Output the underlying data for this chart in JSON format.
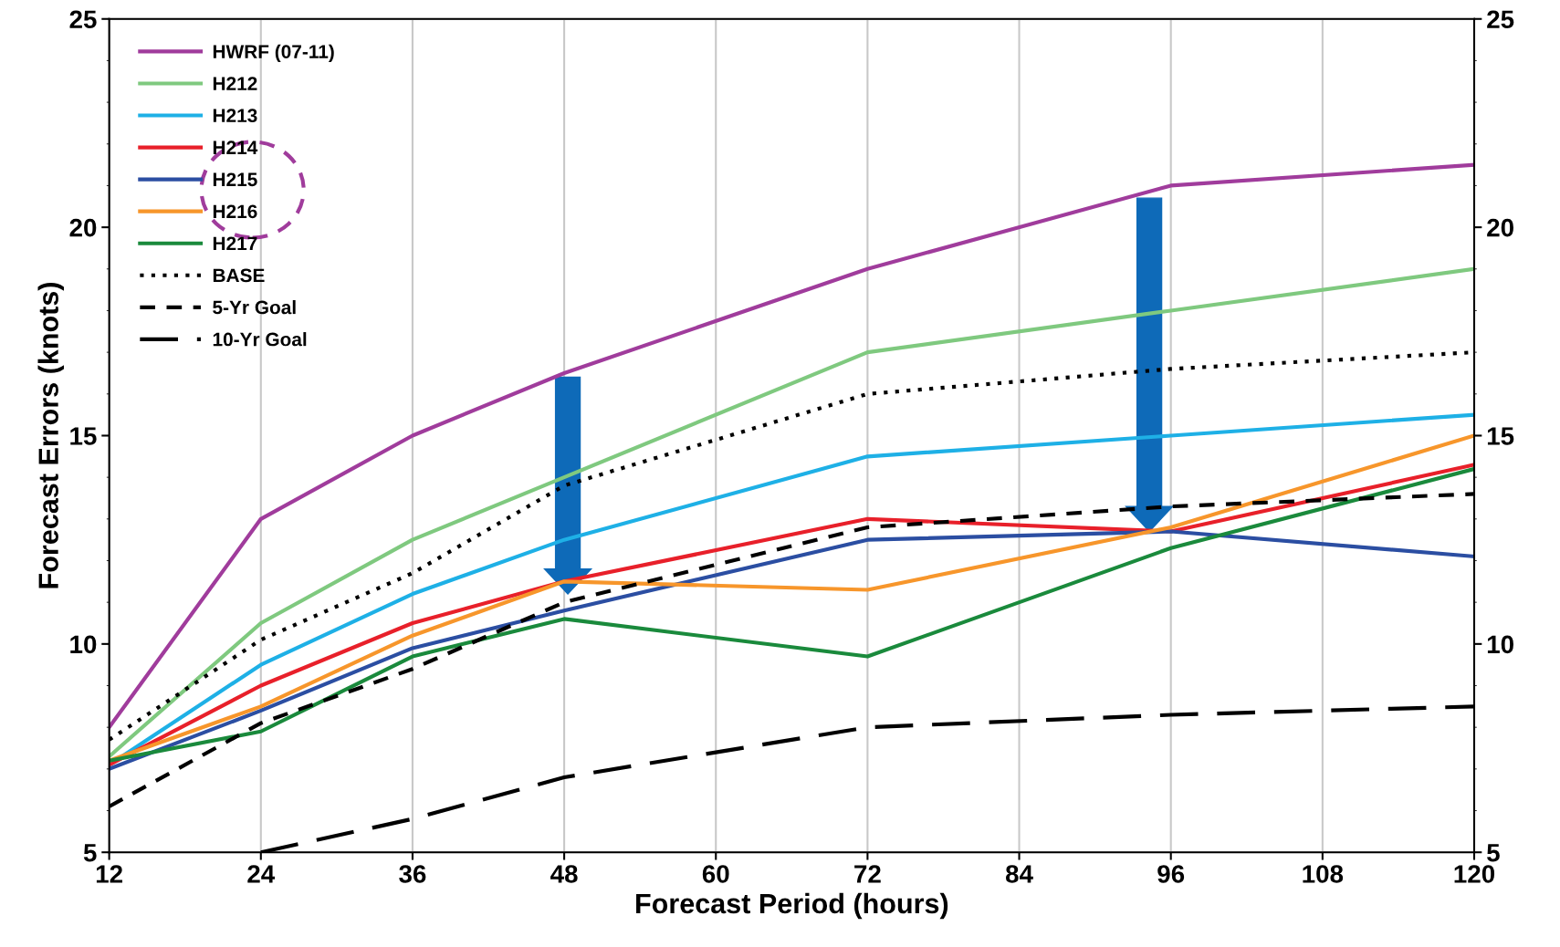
{
  "chart_data": {
    "type": "line",
    "xlabel": "Forecast Period (hours)",
    "ylabel": "Forecast Errors (knots)",
    "x": [
      12,
      24,
      36,
      48,
      72,
      96,
      120
    ],
    "series": [
      {
        "name": "HWRF (07-11)",
        "color": "#a03c9c",
        "values": [
          8.0,
          13.0,
          15.0,
          16.5,
          19.0,
          21.0,
          21.5
        ]
      },
      {
        "name": "H212",
        "color": "#7fc97f",
        "values": [
          7.3,
          10.5,
          12.5,
          14.0,
          17.0,
          18.0,
          19.0
        ]
      },
      {
        "name": "H213",
        "color": "#1eb0e6",
        "values": [
          7.1,
          9.5,
          11.2,
          12.5,
          14.5,
          15.0,
          15.5
        ]
      },
      {
        "name": "H214",
        "color": "#e8202a",
        "values": [
          7.1,
          9.0,
          10.5,
          11.5,
          13.0,
          12.7,
          14.3
        ]
      },
      {
        "name": "H215",
        "color": "#2b4ea2",
        "values": [
          7.0,
          8.4,
          9.9,
          10.8,
          12.5,
          12.7,
          12.1
        ]
      },
      {
        "name": "H216",
        "color": "#f7962b",
        "values": [
          7.2,
          8.5,
          10.2,
          11.5,
          11.3,
          12.8,
          15.0
        ]
      },
      {
        "name": "H217",
        "color": "#1a8a3c",
        "values": [
          7.2,
          7.9,
          9.7,
          10.6,
          9.7,
          12.3,
          14.2
        ]
      },
      {
        "name": "BASE",
        "color": "#000000",
        "line_style": "dotted",
        "values": [
          7.7,
          10.1,
          11.7,
          13.8,
          16.0,
          16.6,
          17.0
        ]
      },
      {
        "name": "5-Yr Goal",
        "color": "#000000",
        "line_style": "dashed",
        "values": [
          6.1,
          8.1,
          9.4,
          11.0,
          12.8,
          13.3,
          13.6
        ]
      },
      {
        "name": "10-Yr Goal",
        "color": "#000000",
        "line_style": "longdash",
        "values": [
          null,
          5.0,
          5.8,
          6.8,
          8.0,
          8.3,
          8.5
        ]
      }
    ],
    "xlim": [
      12,
      120
    ],
    "xticks": [
      12,
      24,
      36,
      48,
      60,
      72,
      84,
      96,
      108,
      120
    ],
    "ylim": [
      5,
      25
    ],
    "yticks": [
      5,
      10,
      15,
      20,
      25
    ],
    "y2lim": [
      5,
      25
    ],
    "y2ticks": [
      5,
      10,
      15,
      20,
      25
    ],
    "grid": "x",
    "legend": "top left",
    "marker": "none"
  }
}
